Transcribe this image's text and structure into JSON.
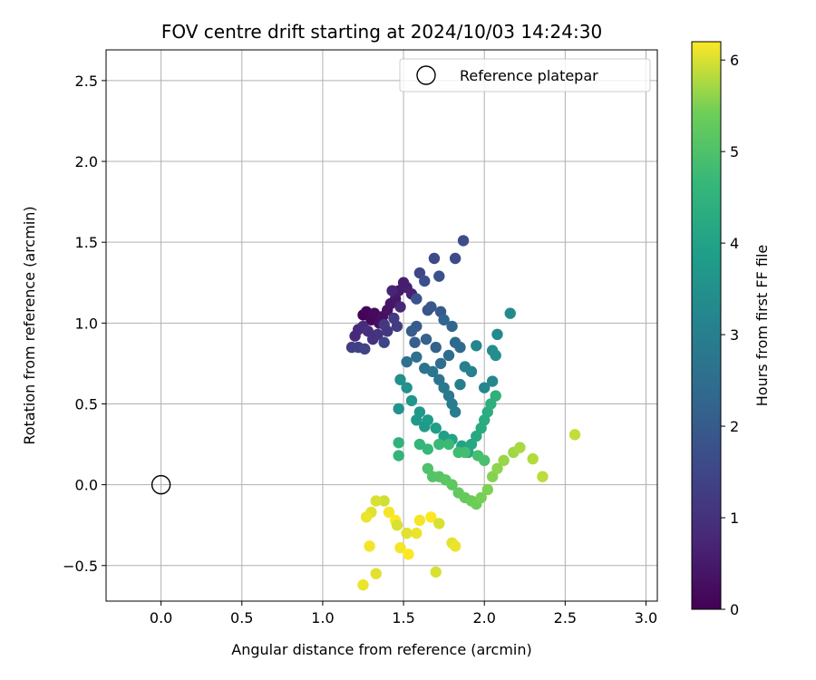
{
  "chart_data": {
    "type": "scatter",
    "title": "FOV centre drift starting at 2024/10/03 14:24:30",
    "xlabel": "Angular distance from reference (arcmin)",
    "ylabel": "Rotation from reference (arcmin)",
    "xlim": [
      -0.34,
      3.07
    ],
    "ylim": [
      -0.72,
      2.69
    ],
    "xticks": [
      0.0,
      0.5,
      1.0,
      1.5,
      2.0,
      2.5,
      3.0
    ],
    "xtick_labels": [
      "0.0",
      "0.5",
      "1.0",
      "1.5",
      "2.0",
      "2.5",
      "3.0"
    ],
    "yticks": [
      -0.5,
      0.0,
      0.5,
      1.0,
      1.5,
      2.0,
      2.5
    ],
    "ytick_labels": [
      "−0.5",
      "0.0",
      "0.5",
      "1.0",
      "1.5",
      "2.0",
      "2.5"
    ],
    "grid": true,
    "legend": {
      "placement": "top-right",
      "entries": [
        {
          "label": "Reference platepar",
          "marker": "open-circle",
          "x": 0.0,
          "y": 0.0
        }
      ]
    },
    "colorbar": {
      "label": "Hours from first FF file",
      "colormap": "viridis",
      "range": [
        0,
        6.2
      ],
      "ticks": [
        0,
        1,
        2,
        3,
        4,
        5,
        6
      ],
      "tick_labels": [
        "0",
        "1",
        "2",
        "3",
        "4",
        "5",
        "6"
      ]
    },
    "points": [
      [
        1.25,
        1.05,
        0.05
      ],
      [
        1.27,
        1.07,
        0.1
      ],
      [
        1.3,
        1.02,
        0.15
      ],
      [
        1.32,
        1.06,
        0.2
      ],
      [
        1.35,
        1.0,
        0.25
      ],
      [
        1.37,
        1.04,
        0.3
      ],
      [
        1.4,
        1.08,
        0.35
      ],
      [
        1.42,
        1.12,
        0.4
      ],
      [
        1.45,
        1.15,
        0.45
      ],
      [
        1.47,
        1.2,
        0.5
      ],
      [
        1.5,
        1.25,
        0.55
      ],
      [
        1.52,
        1.22,
        0.6
      ],
      [
        1.55,
        1.18,
        0.65
      ],
      [
        1.43,
        1.2,
        0.7
      ],
      [
        1.48,
        1.1,
        0.75
      ],
      [
        1.2,
        0.92,
        0.8
      ],
      [
        1.22,
        0.96,
        0.85
      ],
      [
        1.25,
        0.98,
        0.9
      ],
      [
        1.28,
        0.95,
        0.95
      ],
      [
        1.31,
        0.9,
        1.0
      ],
      [
        1.34,
        0.93,
        1.05
      ],
      [
        1.38,
        0.99,
        1.1
      ],
      [
        1.4,
        0.95,
        1.15
      ],
      [
        1.44,
        1.03,
        1.2
      ],
      [
        1.46,
        0.98,
        1.25
      ],
      [
        1.18,
        0.85,
        1.3
      ],
      [
        1.22,
        0.85,
        1.35
      ],
      [
        1.26,
        0.84,
        1.4
      ],
      [
        1.38,
        0.88,
        1.45
      ],
      [
        1.6,
        1.31,
        1.5
      ],
      [
        1.69,
        1.4,
        1.55
      ],
      [
        1.82,
        1.4,
        1.6
      ],
      [
        1.87,
        1.51,
        1.65
      ],
      [
        1.63,
        1.26,
        1.7
      ],
      [
        1.72,
        1.29,
        1.75
      ],
      [
        1.58,
        1.15,
        1.8
      ],
      [
        1.65,
        1.08,
        1.85
      ],
      [
        1.67,
        1.1,
        1.9
      ],
      [
        1.73,
        1.07,
        1.95
      ],
      [
        1.58,
        0.98,
        2.0
      ],
      [
        1.55,
        0.95,
        2.05
      ],
      [
        1.57,
        0.88,
        2.1
      ],
      [
        1.64,
        0.9,
        2.15
      ],
      [
        1.7,
        0.85,
        2.2
      ],
      [
        1.75,
        1.02,
        2.25
      ],
      [
        1.8,
        0.98,
        2.3
      ],
      [
        1.82,
        0.88,
        2.35
      ],
      [
        1.85,
        0.85,
        2.4
      ],
      [
        1.78,
        0.8,
        2.45
      ],
      [
        1.73,
        0.75,
        2.5
      ],
      [
        1.52,
        0.76,
        2.55
      ],
      [
        1.58,
        0.79,
        2.6
      ],
      [
        1.63,
        0.72,
        2.65
      ],
      [
        1.68,
        0.7,
        2.7
      ],
      [
        1.72,
        0.65,
        2.75
      ],
      [
        1.75,
        0.6,
        2.8
      ],
      [
        1.78,
        0.55,
        2.85
      ],
      [
        1.8,
        0.5,
        2.9
      ],
      [
        1.82,
        0.45,
        2.95
      ],
      [
        1.85,
        0.62,
        3.0
      ],
      [
        1.88,
        0.73,
        3.05
      ],
      [
        1.92,
        0.7,
        3.1
      ],
      [
        1.95,
        0.86,
        3.15
      ],
      [
        2.0,
        0.6,
        3.2
      ],
      [
        2.05,
        0.64,
        3.25
      ],
      [
        2.08,
        0.93,
        3.3
      ],
      [
        2.16,
        1.06,
        3.35
      ],
      [
        2.05,
        0.83,
        3.4
      ],
      [
        2.07,
        0.8,
        3.45
      ],
      [
        1.48,
        0.65,
        3.5
      ],
      [
        1.52,
        0.6,
        3.55
      ],
      [
        1.47,
        0.47,
        3.6
      ],
      [
        1.55,
        0.52,
        3.65
      ],
      [
        1.6,
        0.45,
        3.7
      ],
      [
        1.58,
        0.4,
        3.75
      ],
      [
        1.63,
        0.36,
        3.8
      ],
      [
        1.65,
        0.4,
        3.85
      ],
      [
        1.7,
        0.35,
        3.9
      ],
      [
        1.75,
        0.3,
        3.95
      ],
      [
        1.8,
        0.28,
        4.0
      ],
      [
        1.86,
        0.24,
        4.05
      ],
      [
        1.9,
        0.2,
        4.1
      ],
      [
        1.92,
        0.25,
        4.15
      ],
      [
        1.95,
        0.3,
        4.2
      ],
      [
        1.98,
        0.35,
        4.25
      ],
      [
        2.0,
        0.4,
        4.3
      ],
      [
        2.02,
        0.45,
        4.35
      ],
      [
        2.04,
        0.5,
        4.4
      ],
      [
        2.07,
        0.55,
        4.45
      ],
      [
        1.47,
        0.26,
        4.5
      ],
      [
        1.47,
        0.18,
        4.55
      ],
      [
        1.6,
        0.25,
        4.6
      ],
      [
        1.65,
        0.22,
        4.65
      ],
      [
        1.72,
        0.25,
        4.7
      ],
      [
        1.78,
        0.25,
        4.75
      ],
      [
        1.84,
        0.2,
        4.8
      ],
      [
        1.88,
        0.2,
        4.85
      ],
      [
        1.96,
        0.18,
        4.9
      ],
      [
        2.0,
        0.15,
        4.95
      ],
      [
        1.65,
        0.1,
        5.0
      ],
      [
        1.68,
        0.05,
        5.05
      ],
      [
        1.72,
        0.05,
        5.1
      ],
      [
        1.76,
        0.03,
        5.15
      ],
      [
        1.8,
        0.0,
        5.2
      ],
      [
        1.84,
        -0.05,
        5.25
      ],
      [
        1.88,
        -0.08,
        5.3
      ],
      [
        1.92,
        -0.1,
        5.35
      ],
      [
        1.95,
        -0.12,
        5.4
      ],
      [
        1.98,
        -0.08,
        5.45
      ],
      [
        2.02,
        -0.03,
        5.5
      ],
      [
        2.05,
        0.05,
        5.55
      ],
      [
        2.08,
        0.1,
        5.6
      ],
      [
        2.12,
        0.15,
        5.65
      ],
      [
        2.18,
        0.2,
        5.7
      ],
      [
        2.22,
        0.23,
        5.75
      ],
      [
        2.3,
        0.16,
        5.8
      ],
      [
        2.36,
        0.05,
        5.85
      ],
      [
        2.56,
        0.31,
        5.9
      ],
      [
        1.38,
        -0.1,
        5.95
      ],
      [
        1.33,
        -0.1,
        6.0
      ],
      [
        1.3,
        -0.17,
        6.05
      ],
      [
        1.27,
        -0.2,
        6.1
      ],
      [
        1.41,
        -0.17,
        6.15
      ],
      [
        1.45,
        -0.22,
        6.2
      ],
      [
        1.46,
        -0.25,
        6.0
      ],
      [
        1.52,
        -0.3,
        6.05
      ],
      [
        1.58,
        -0.3,
        6.1
      ],
      [
        1.6,
        -0.22,
        6.15
      ],
      [
        1.67,
        -0.2,
        6.2
      ],
      [
        1.72,
        -0.24,
        6.0
      ],
      [
        1.8,
        -0.36,
        6.05
      ],
      [
        1.82,
        -0.38,
        6.1
      ],
      [
        1.48,
        -0.39,
        6.15
      ],
      [
        1.53,
        -0.43,
        6.2
      ],
      [
        1.7,
        -0.54,
        6.0
      ],
      [
        1.33,
        -0.55,
        6.05
      ],
      [
        1.25,
        -0.62,
        6.1
      ],
      [
        1.29,
        -0.38,
        6.15
      ]
    ]
  }
}
